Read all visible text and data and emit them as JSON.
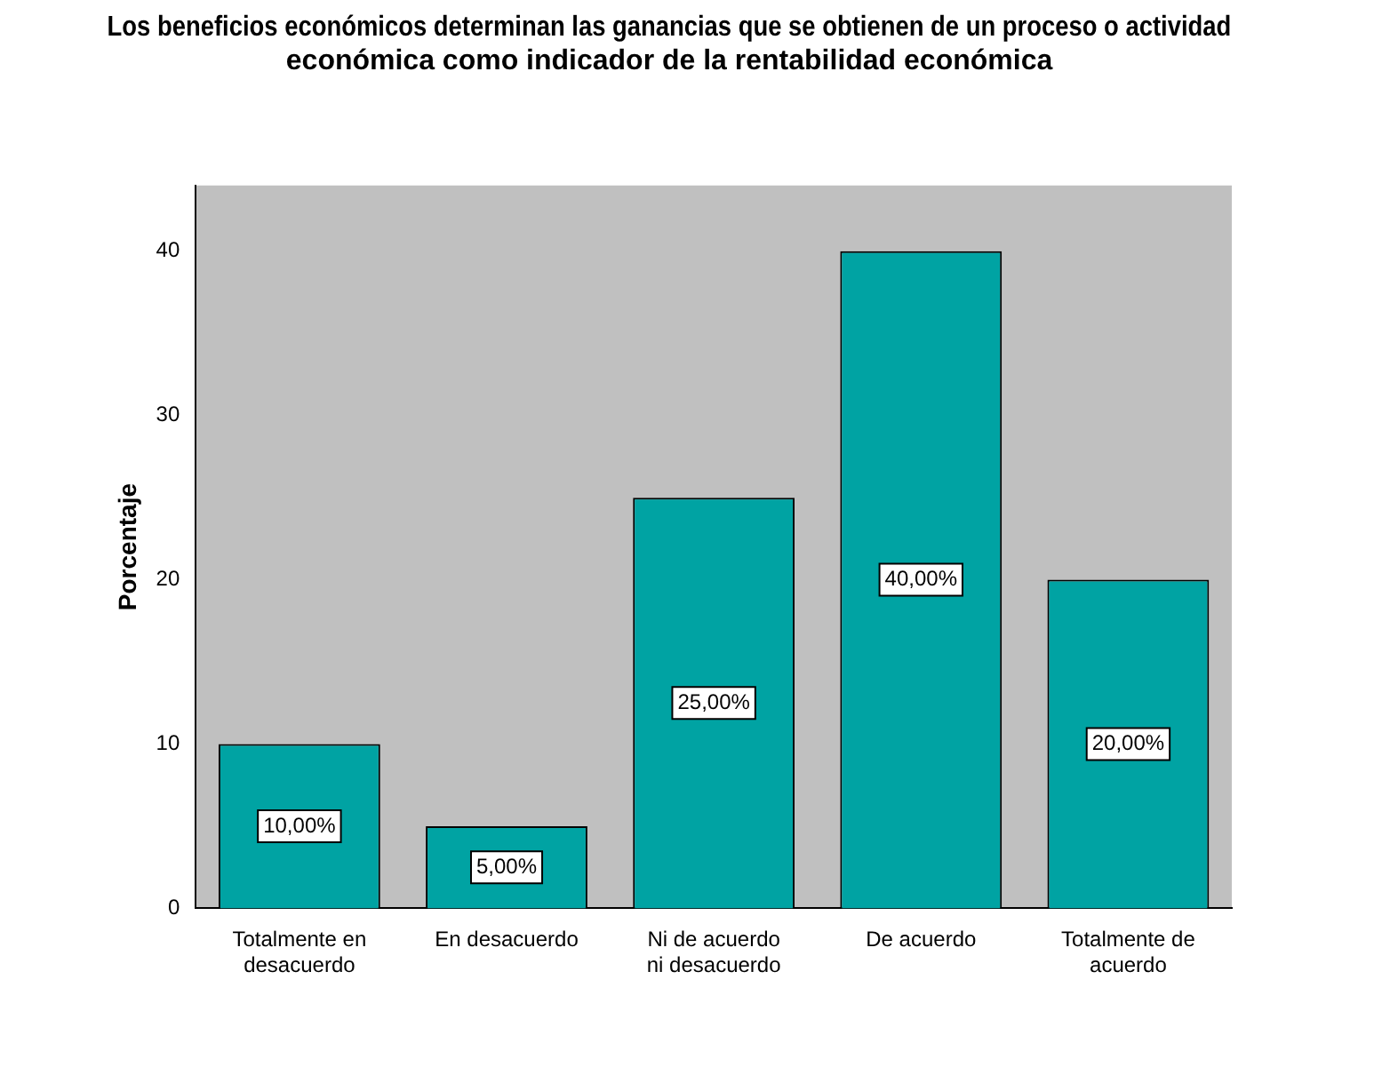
{
  "chart_data": {
    "type": "bar",
    "title": "Los beneficios económicos determinan las ganancias que se obtienen de un proceso o actividad económica como indicador de la rentabilidad económica",
    "ylabel": "Porcentaje",
    "categories": [
      "Totalmente en desacuerdo",
      "En desacuerdo",
      "Ni de acuerdo ni desacuerdo",
      "De acuerdo",
      "Totalmente de acuerdo"
    ],
    "values": [
      10,
      5,
      25,
      40,
      20
    ],
    "value_labels": [
      "10,00%",
      "5,00%",
      "25,00%",
      "40,00%",
      "20,00%"
    ],
    "color": "#00a3a3",
    "ylim": [
      0,
      44
    ],
    "yticks": [
      0,
      10,
      20,
      30,
      40
    ],
    "grid": false,
    "legend": false
  }
}
